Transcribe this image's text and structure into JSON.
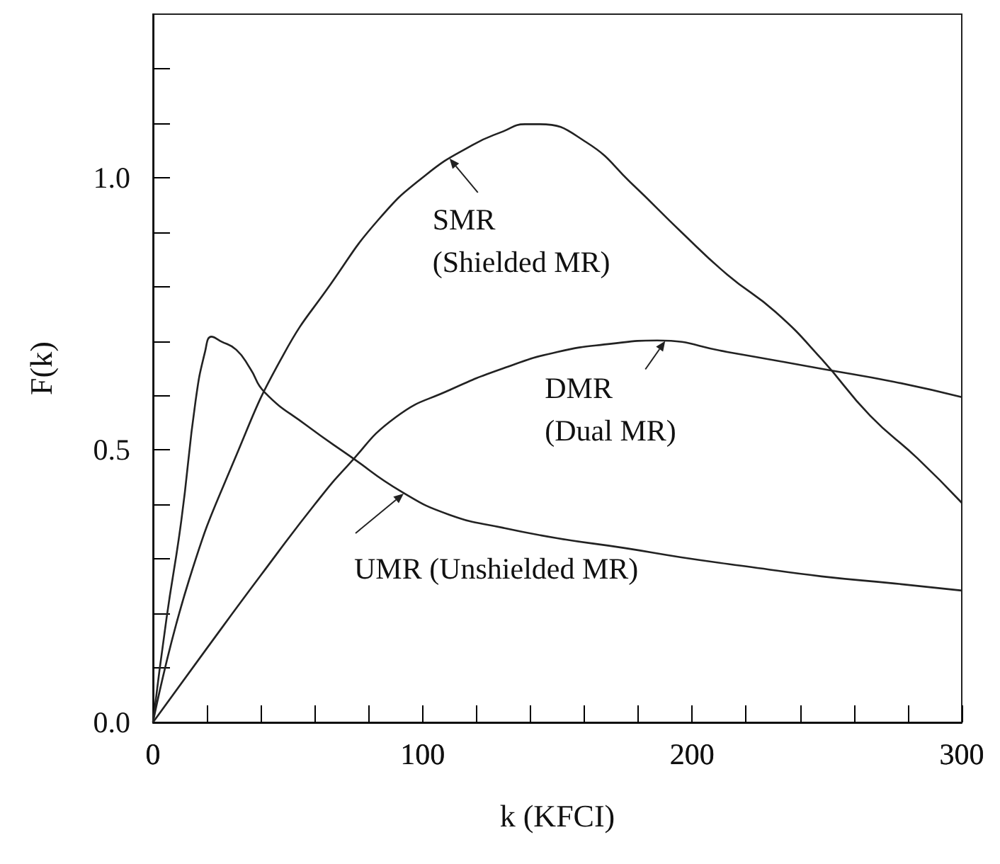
{
  "chart_data": {
    "type": "line",
    "xlabel": "k (KFCI)",
    "ylabel": "F(k)",
    "xlim": [
      0,
      300
    ],
    "ylim": [
      0,
      1.3
    ],
    "xticks": [
      0,
      {
        "value": 20,
        "label": null
      },
      {
        "value": 40,
        "label": null
      },
      {
        "value": 60,
        "label": null
      },
      {
        "value": 80,
        "label": null
      },
      100,
      {
        "value": 120,
        "label": null
      },
      {
        "value": 140,
        "label": null
      },
      {
        "value": 160,
        "label": null
      },
      {
        "value": 180,
        "label": null
      },
      200,
      {
        "value": 220,
        "label": null
      },
      {
        "value": 240,
        "label": null
      },
      {
        "value": 260,
        "label": null
      },
      {
        "value": 280,
        "label": null
      },
      300
    ],
    "yticks": [
      {
        "value": 0,
        "label": "0.0"
      },
      {
        "value": 0.1,
        "label": null
      },
      {
        "value": 0.2,
        "label": null
      },
      {
        "value": 0.3,
        "label": null
      },
      {
        "value": 0.4,
        "label": null
      },
      {
        "value": 0.5,
        "label": "0.5"
      },
      {
        "value": 0.6,
        "label": null
      },
      {
        "value": 0.7,
        "label": null
      },
      {
        "value": 0.8,
        "label": null
      },
      {
        "value": 0.9,
        "label": null
      },
      {
        "value": 1.0,
        "label": "1.0"
      },
      {
        "value": 1.1,
        "label": null
      },
      {
        "value": 1.2,
        "label": null
      }
    ],
    "grid": false,
    "marker": "none",
    "line_style": "solid",
    "series": [
      {
        "color": "#222222",
        "x": [
          0,
          5,
          10.5,
          15.8,
          19.3,
          21.7,
          25,
          30.9,
          36,
          41.4,
          57,
          73,
          92,
          110,
          130,
          150,
          175,
          196,
          222,
          248,
          275,
          300
        ],
        "values": [
          0,
          0.19,
          0.37,
          0.59,
          0.68,
          0.708,
          0.7,
          0.684,
          0.65,
          0.606,
          0.545,
          0.489,
          0.424,
          0.381,
          0.357,
          0.338,
          0.32,
          0.303,
          0.285,
          0.268,
          0.255,
          0.242
        ]
      },
      {
        "color": "#222222",
        "x": [
          0,
          13.3,
          30.9,
          48.4,
          66,
          83.5,
          101,
          118.6,
          130,
          138,
          143,
          160.7,
          178,
          196,
          213,
          231,
          248,
          266,
          283.5,
          300
        ],
        "values": [
          0,
          0.26,
          0.49,
          0.675,
          0.805,
          0.922,
          1.004,
          1.06,
          1.085,
          1.098,
          1.098,
          1.065,
          0.987,
          0.9,
          0.822,
          0.753,
          0.667,
          0.563,
          0.485,
          0.403
        ]
      },
      {
        "color": "#222222",
        "x": [
          0,
          20,
          40,
          60,
          72,
          90,
          110,
          130,
          150,
          170,
          187,
          213,
          248,
          275,
          300
        ],
        "values": [
          0,
          0.136,
          0.27,
          0.4,
          0.47,
          0.56,
          0.61,
          0.65,
          0.68,
          0.695,
          0.701,
          0.68,
          0.649,
          0.625,
          0.597
        ]
      }
    ],
    "annotations": [
      {
        "text": "SMR\n(Shielded MR)",
        "x": 110,
        "y": 1.035
      },
      {
        "text": "DMR\n(Dual MR)",
        "x": 190,
        "y": 0.7
      },
      {
        "text": "UMR (Unshielded MR)",
        "x": 93,
        "y": 0.42
      }
    ]
  }
}
